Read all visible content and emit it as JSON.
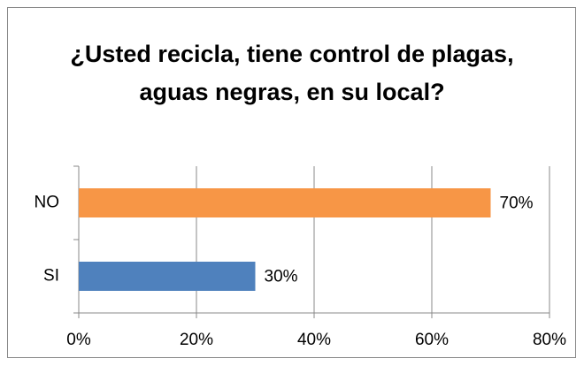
{
  "chart_data": {
    "type": "barh",
    "title": "¿Usted recicla, tiene control de plagas, aguas negras, en su local?",
    "categories": [
      "NO",
      "SI"
    ],
    "values": [
      70,
      30
    ],
    "value_labels": [
      "70%",
      "30%"
    ],
    "colors": [
      "#f79646",
      "#4f81bd"
    ],
    "xlim": [
      0,
      80
    ],
    "xticks": [
      {
        "value": 0,
        "label": "0%"
      },
      {
        "value": 20,
        "label": "20%"
      },
      {
        "value": 40,
        "label": "40%"
      },
      {
        "value": 60,
        "label": "60%"
      },
      {
        "value": 80,
        "label": "80%"
      }
    ],
    "grid": true
  }
}
